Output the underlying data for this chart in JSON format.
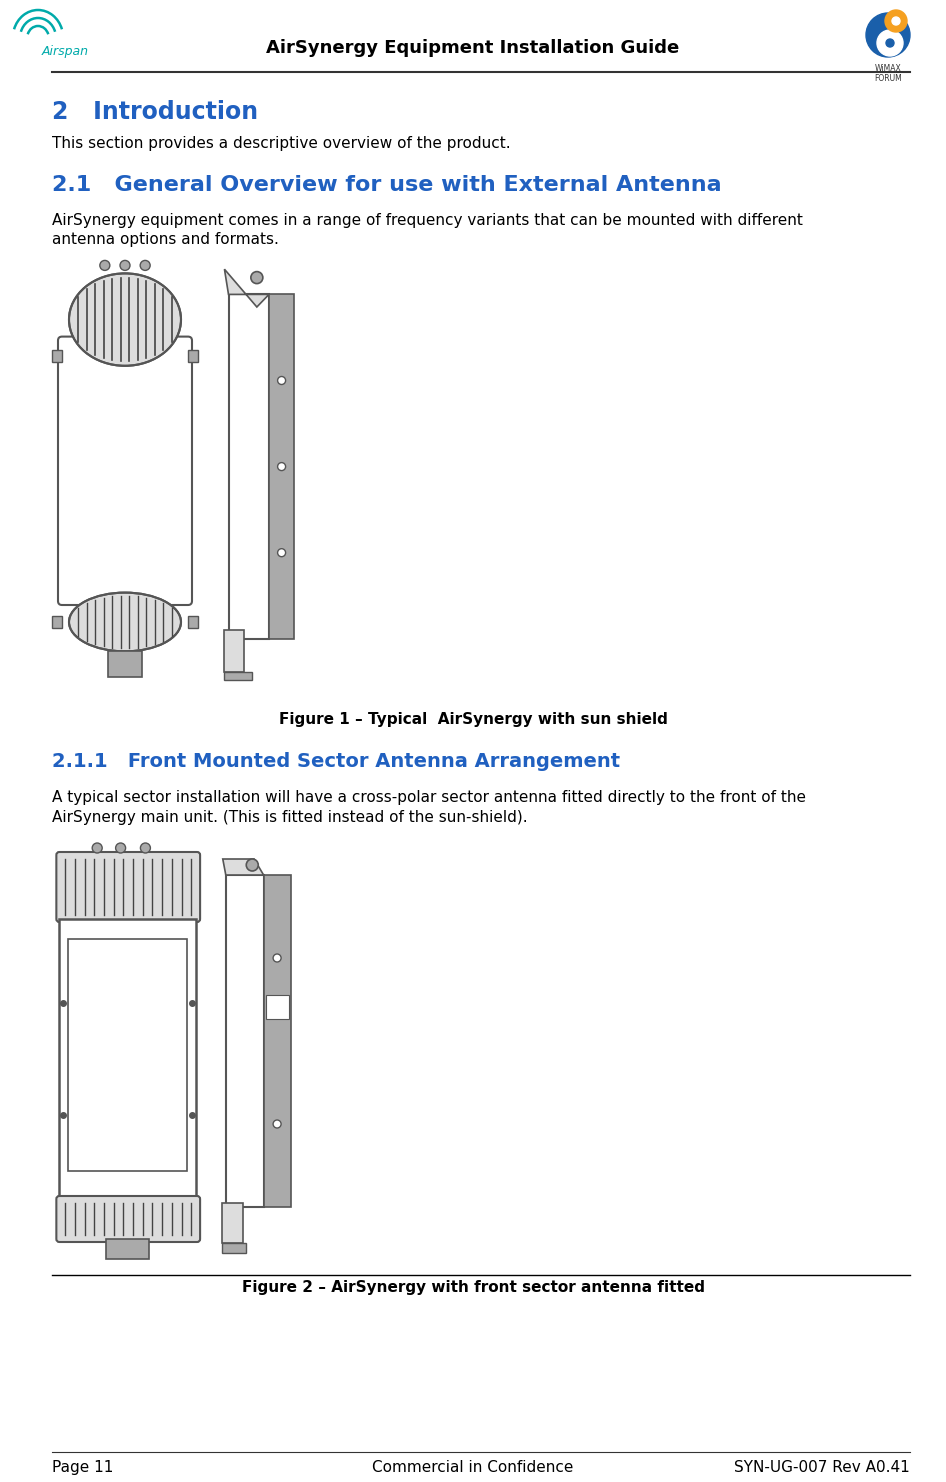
{
  "page_title": "AirSynergy Equipment Installation Guide",
  "section2_title": "2   Introduction",
  "section2_body": "This section provides a descriptive overview of the product.",
  "section21_title": "2.1   General Overview for use with External Antenna",
  "section21_body_line1": "AirSynergy equipment comes in a range of frequency variants that can be mounted with different",
  "section21_body_line2": "antenna options and formats.",
  "figure1_caption": "Figure 1 – Typical  AirSynergy with sun shield",
  "section211_title": "2.1.1   Front Mounted Sector Antenna Arrangement",
  "section211_body_line1": "A typical sector installation will have a cross-polar sector antenna fitted directly to the front of the",
  "section211_body_line2": "AirSynergy main unit. (This is fitted instead of the sun-shield).",
  "figure2_caption": "Figure 2 – AirSynergy with front sector antenna fitted",
  "footer_left": "Page 11",
  "footer_center": "Commercial in Confidence",
  "footer_right": "SYN-UG-007 Rev A0.41",
  "heading_color": "#2060C0",
  "body_color": "#000000",
  "bg_color": "#ffffff",
  "header_title_color": "#000000",
  "airspan_teal": "#00AAAA",
  "wimax_blue": "#1A5FAA",
  "wimax_orange": "#F5A020",
  "draw_color": "#555555",
  "draw_light": "#dddddd",
  "draw_mid": "#aaaaaa"
}
